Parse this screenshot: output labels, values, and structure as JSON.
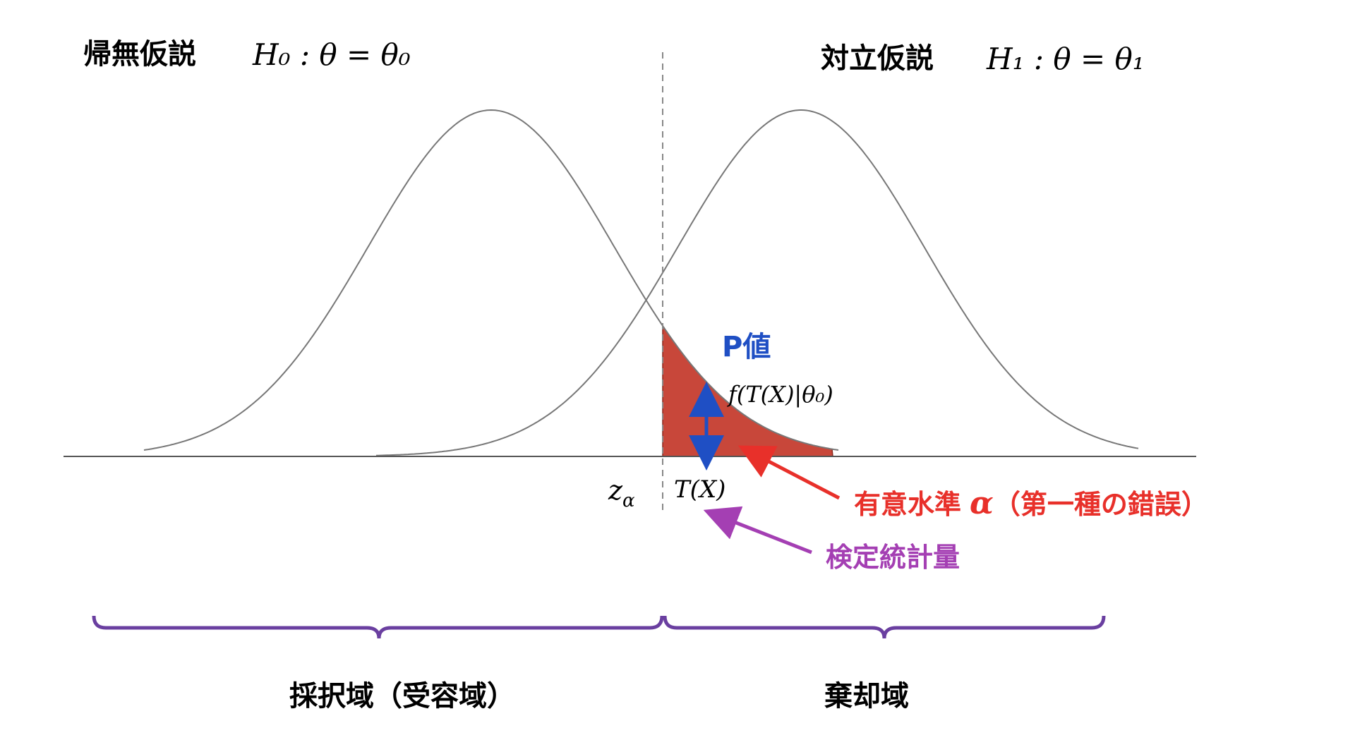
{
  "null_hypothesis": {
    "label": "帰無仮説",
    "formula": "H₀ : θ = θ₀"
  },
  "alternative_hypothesis": {
    "label": "対立仮説",
    "formula": "H₁ : θ = θ₁"
  },
  "p_value": {
    "label": "P値",
    "formula": "f(T(X)|θ₀)"
  },
  "z_alpha": {
    "symbol": "z",
    "subscript": "α"
  },
  "test_statistic_symbol": "T(X)",
  "significance_level": {
    "label": "有意水準",
    "symbol": "α",
    "note": "（第一種の錯誤）"
  },
  "test_statistic": "検定統計量",
  "regions": {
    "acceptance": "採択域（受容域）",
    "rejection": "棄却域"
  }
}
